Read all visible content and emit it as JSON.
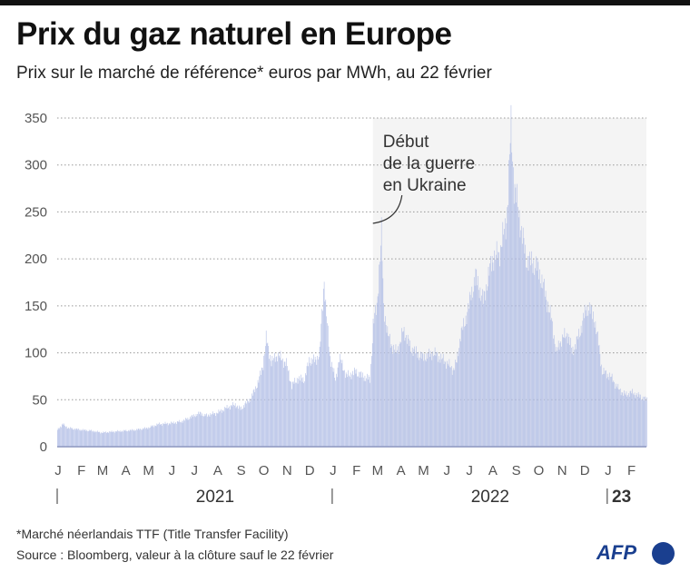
{
  "title": "Prix du gaz naturel en Europe",
  "subtitle": "Prix sur le marché de référence* euros par MWh, au 22 février",
  "footnote": "*Marché néerlandais TTF (Title Transfer Facility)",
  "source": "Source : Bloomberg, valeur à la clôture sauf le 22 février",
  "logo": "AFP",
  "chart_data": {
    "type": "bar",
    "ylim": [
      0,
      350
    ],
    "yticks": [
      0,
      50,
      100,
      150,
      200,
      250,
      300,
      350
    ],
    "grid": true,
    "bar_color": "#b3bfe6",
    "shade_color": "#f4f4f4",
    "shade_start": "2022-02-24",
    "annotation": {
      "date": "2022-02-24",
      "lines": [
        "Début",
        "de la guerre",
        "en Ukraine"
      ]
    },
    "month_labels": [
      "J",
      "F",
      "M",
      "A",
      "M",
      "J",
      "J",
      "A",
      "S",
      "O",
      "N",
      "D",
      "J",
      "F",
      "M",
      "A",
      "M",
      "J",
      "J",
      "A",
      "S",
      "O",
      "N",
      "D",
      "J",
      "F"
    ],
    "year_labels": [
      "2021",
      "2022",
      "23"
    ],
    "x_range": [
      "2021-01-01",
      "2023-02-22"
    ],
    "points": [
      [
        "2021-01-01",
        18
      ],
      [
        "2021-01-08",
        24
      ],
      [
        "2021-01-15",
        20
      ],
      [
        "2021-02-01",
        18
      ],
      [
        "2021-02-15",
        17
      ],
      [
        "2021-03-01",
        15
      ],
      [
        "2021-03-15",
        16
      ],
      [
        "2021-04-01",
        17
      ],
      [
        "2021-04-15",
        18
      ],
      [
        "2021-05-01",
        20
      ],
      [
        "2021-05-15",
        24
      ],
      [
        "2021-06-01",
        25
      ],
      [
        "2021-06-15",
        27
      ],
      [
        "2021-07-01",
        33
      ],
      [
        "2021-07-10",
        36
      ],
      [
        "2021-07-15",
        33
      ],
      [
        "2021-08-01",
        36
      ],
      [
        "2021-08-15",
        42
      ],
      [
        "2021-08-25",
        45
      ],
      [
        "2021-09-01",
        40
      ],
      [
        "2021-09-15",
        52
      ],
      [
        "2021-09-25",
        70
      ],
      [
        "2021-10-01",
        88
      ],
      [
        "2021-10-05",
        115
      ],
      [
        "2021-10-12",
        90
      ],
      [
        "2021-10-20",
        98
      ],
      [
        "2021-11-01",
        88
      ],
      [
        "2021-11-08",
        65
      ],
      [
        "2021-11-15",
        72
      ],
      [
        "2021-11-25",
        72
      ],
      [
        "2021-12-01",
        92
      ],
      [
        "2021-12-10",
        92
      ],
      [
        "2021-12-15",
        100
      ],
      [
        "2021-12-21",
        180
      ],
      [
        "2021-12-23",
        150
      ],
      [
        "2021-12-28",
        100
      ],
      [
        "2022-01-05",
        70
      ],
      [
        "2022-01-10",
        95
      ],
      [
        "2022-01-20",
        75
      ],
      [
        "2022-02-01",
        80
      ],
      [
        "2022-02-10",
        75
      ],
      [
        "2022-02-20",
        72
      ],
      [
        "2022-02-24",
        130
      ],
      [
        "2022-03-01",
        150
      ],
      [
        "2022-03-07",
        227
      ],
      [
        "2022-03-10",
        150
      ],
      [
        "2022-03-15",
        120
      ],
      [
        "2022-03-25",
        100
      ],
      [
        "2022-04-01",
        110
      ],
      [
        "2022-04-05",
        125
      ],
      [
        "2022-04-15",
        105
      ],
      [
        "2022-05-01",
        95
      ],
      [
        "2022-05-15",
        100
      ],
      [
        "2022-06-01",
        90
      ],
      [
        "2022-06-10",
        82
      ],
      [
        "2022-06-15",
        90
      ],
      [
        "2022-06-20",
        120
      ],
      [
        "2022-06-25",
        130
      ],
      [
        "2022-07-05",
        165
      ],
      [
        "2022-07-10",
        182
      ],
      [
        "2022-07-20",
        155
      ],
      [
        "2022-08-01",
        200
      ],
      [
        "2022-08-10",
        205
      ],
      [
        "2022-08-20",
        240
      ],
      [
        "2022-08-26",
        340
      ],
      [
        "2022-08-30",
        280
      ],
      [
        "2022-09-05",
        250
      ],
      [
        "2022-09-15",
        200
      ],
      [
        "2022-09-25",
        195
      ],
      [
        "2022-10-01",
        190
      ],
      [
        "2022-10-10",
        165
      ],
      [
        "2022-10-20",
        130
      ],
      [
        "2022-10-25",
        100
      ],
      [
        "2022-11-01",
        115
      ],
      [
        "2022-11-10",
        120
      ],
      [
        "2022-11-15",
        100
      ],
      [
        "2022-11-25",
        120
      ],
      [
        "2022-12-01",
        140
      ],
      [
        "2022-12-07",
        150
      ],
      [
        "2022-12-15",
        135
      ],
      [
        "2022-12-20",
        110
      ],
      [
        "2022-12-25",
        80
      ],
      [
        "2023-01-05",
        75
      ],
      [
        "2023-01-15",
        62
      ],
      [
        "2023-01-25",
        55
      ],
      [
        "2023-02-01",
        58
      ],
      [
        "2023-02-10",
        55
      ],
      [
        "2023-02-22",
        50
      ]
    ]
  }
}
